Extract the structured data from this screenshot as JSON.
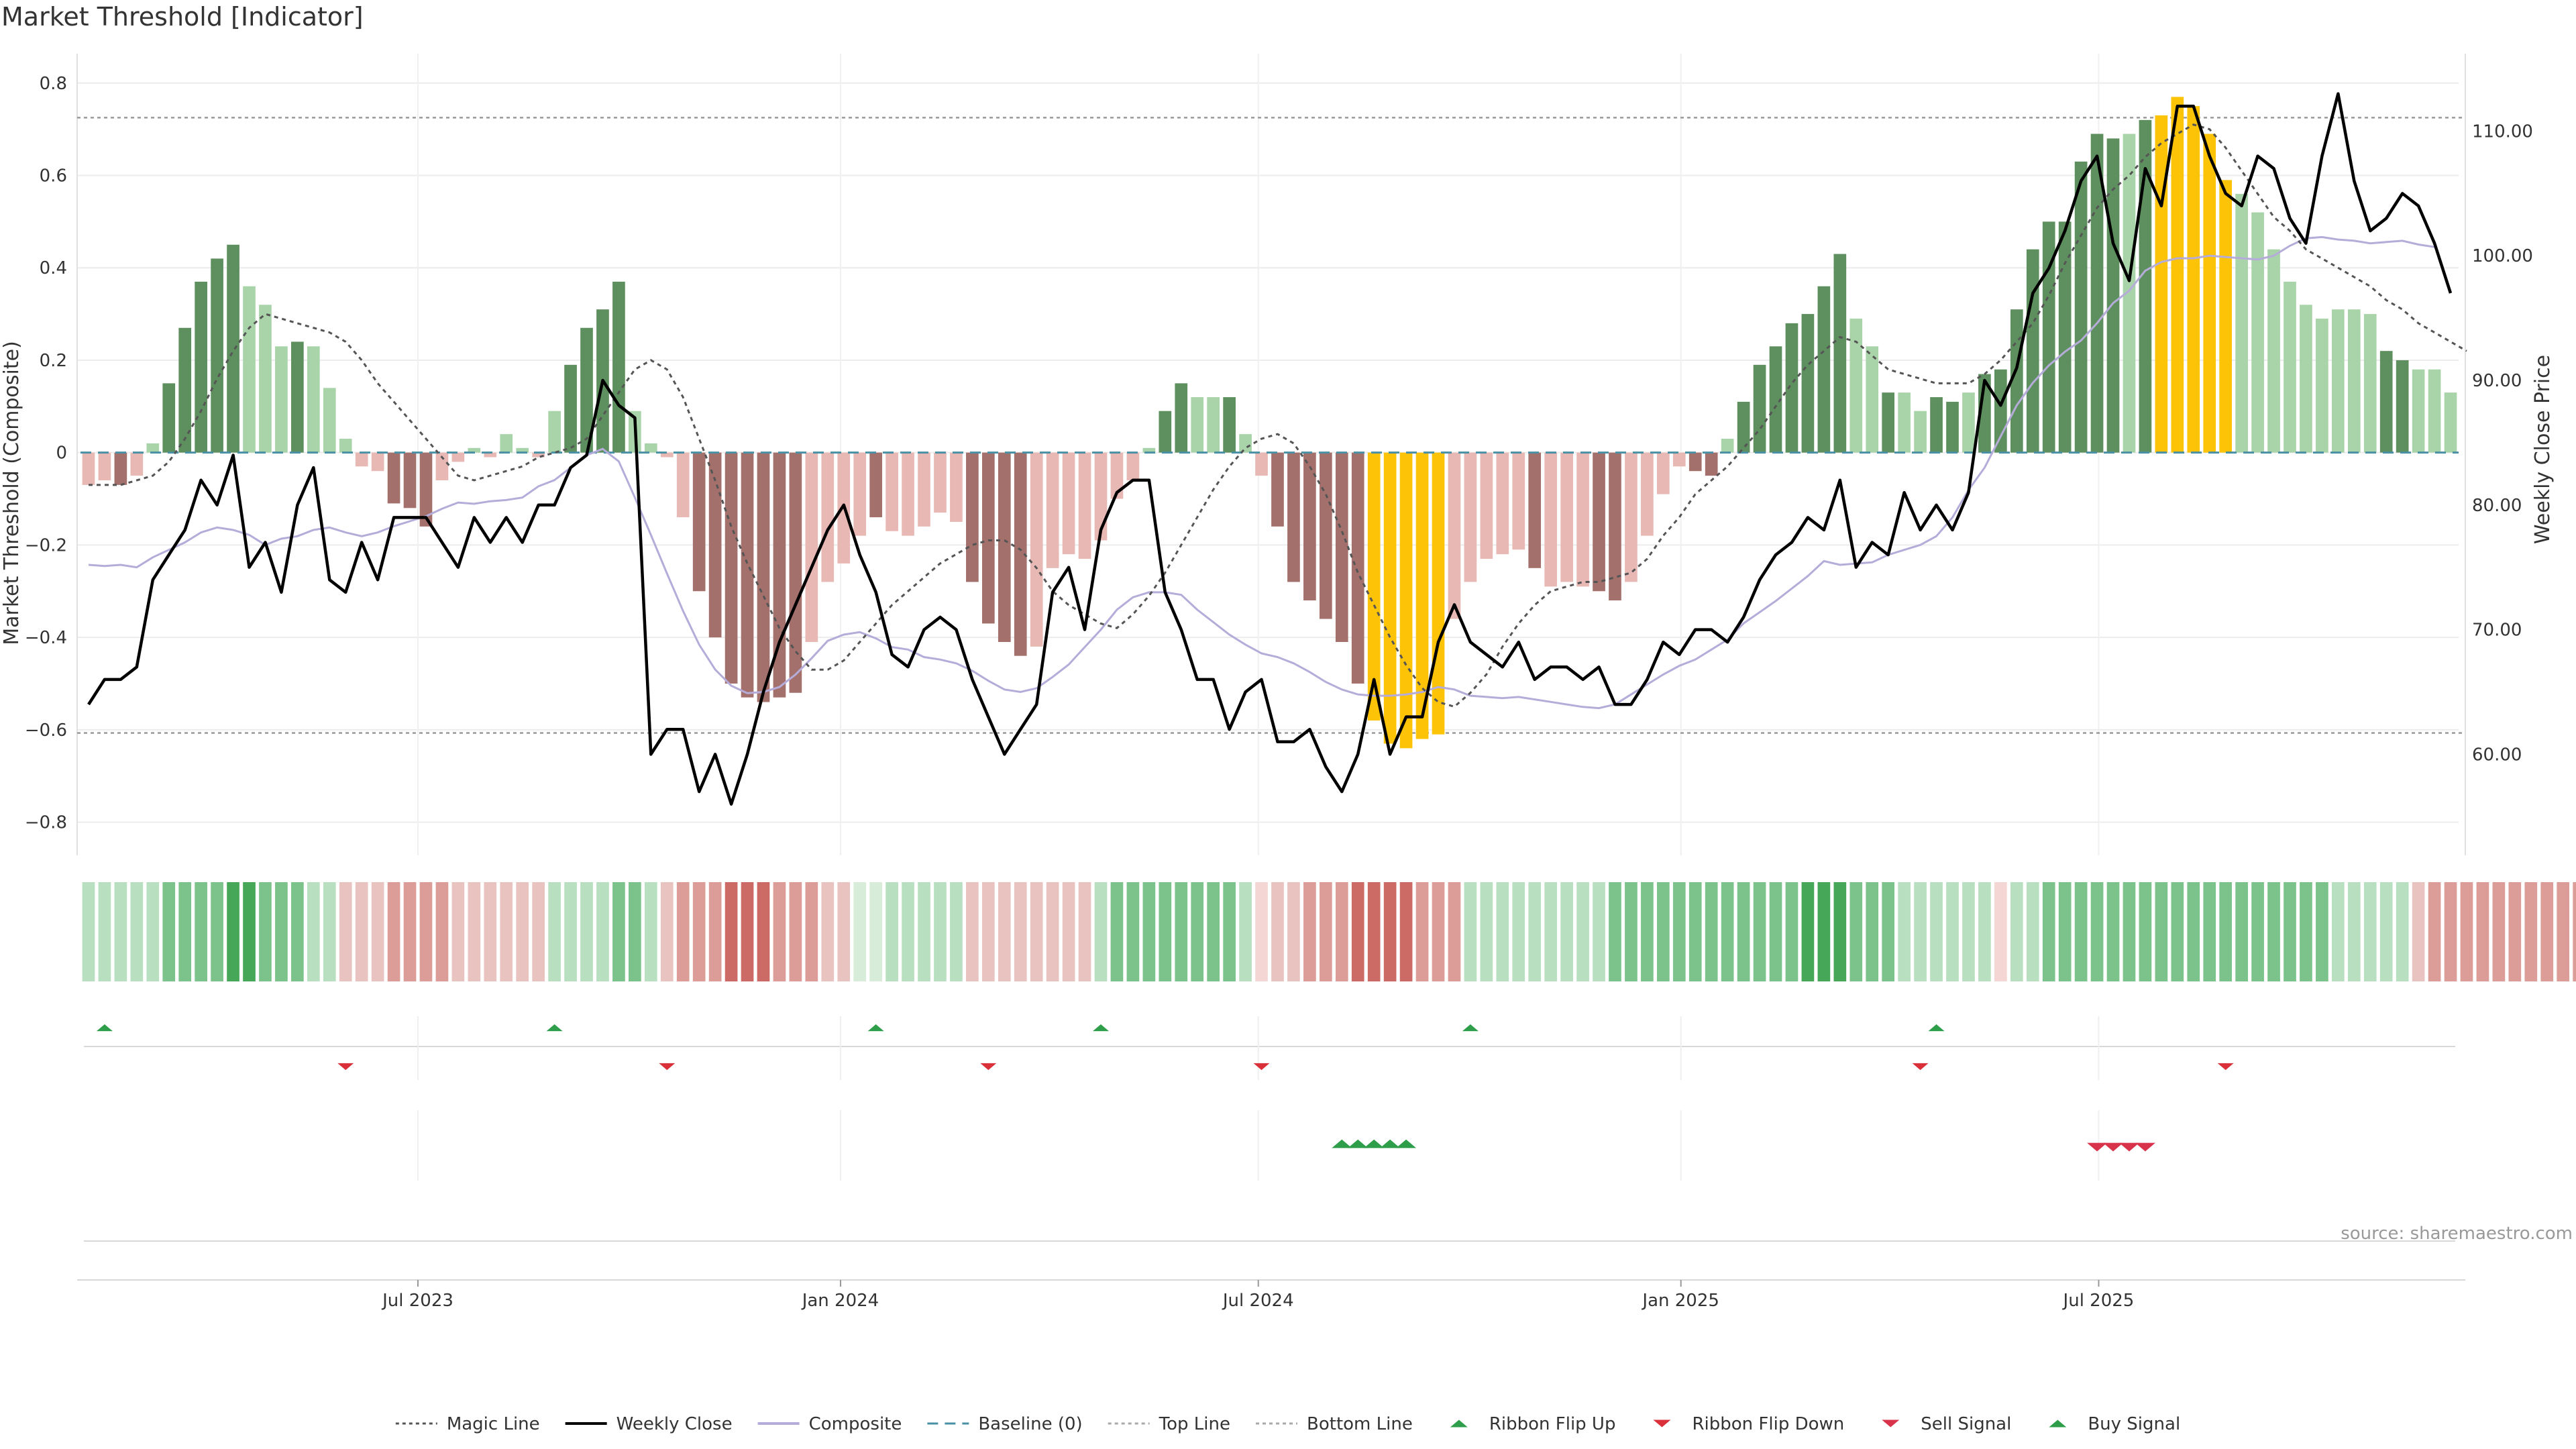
{
  "title": "Market Threshold [Indicator]",
  "source": "source: sharemaestro.com",
  "colors": {
    "green_dark": "#5e8f5e",
    "green_light": "#a9d4a9",
    "red_dark": "#a4706c",
    "red_light": "#e8b8b4",
    "yellow": "#fcc307",
    "composite": "#b5acd9",
    "weekly": "#000000",
    "magic": "#555555",
    "baseline": "#4a90a4",
    "threshold": "#888888",
    "up_marker": "#2e9e4a",
    "down_marker": "#d9303a",
    "sell_marker": "#d8334a",
    "buy_marker": "#2e9e4a"
  },
  "chart_data": {
    "type": "bar",
    "title": "Market Threshold [Indicator]",
    "ylabel_left": "Market Threshold (Composite)",
    "ylabel_right": "Weekly Close Price",
    "ylim_left": [
      -0.85,
      0.82
    ],
    "ylim_right": [
      52.7,
      114.6
    ],
    "yticks_left": [
      {
        "v": 0.8,
        "label": "0.8"
      },
      {
        "v": 0.6,
        "label": "0.6"
      },
      {
        "v": 0.4,
        "label": "0.4"
      },
      {
        "v": 0.2,
        "label": "0.2"
      },
      {
        "v": 0,
        "label": "0"
      },
      {
        "v": -0.2,
        "label": "−0.2"
      },
      {
        "v": -0.4,
        "label": "−0.4"
      },
      {
        "v": -0.6,
        "label": "−0.6"
      },
      {
        "v": -0.8,
        "label": "−0.8"
      }
    ],
    "yticks_right": [
      {
        "v": 110,
        "label": "110.00"
      },
      {
        "v": 100,
        "label": "100.00"
      },
      {
        "v": 90,
        "label": "90.00"
      },
      {
        "v": 80,
        "label": "80.00"
      },
      {
        "v": 70,
        "label": "70.00"
      },
      {
        "v": 60,
        "label": "60.00"
      }
    ],
    "xticks": [
      {
        "i": 21,
        "label": "Jul 2023"
      },
      {
        "i": 47.3,
        "label": "Jan 2024"
      },
      {
        "i": 73.3,
        "label": "Jul 2024"
      },
      {
        "i": 99.6,
        "label": "Jan 2025"
      },
      {
        "i": 125.6,
        "label": "Jul 2025"
      }
    ],
    "top_line": 0.725,
    "bottom_line": -0.607,
    "baseline": 0,
    "composite": [
      -0.07,
      -0.06,
      -0.07,
      -0.05,
      0.02,
      0.15,
      0.27,
      0.37,
      0.42,
      0.45,
      0.36,
      0.32,
      0.23,
      0.24,
      0.23,
      0.14,
      0.03,
      -0.03,
      -0.04,
      -0.11,
      -0.12,
      -0.16,
      -0.06,
      -0.02,
      0.01,
      -0.01,
      0.04,
      0.01,
      -0.01,
      0.09,
      0.19,
      0.27,
      0.31,
      0.37,
      0.09,
      0.02,
      -0.01,
      -0.14,
      -0.3,
      -0.4,
      -0.5,
      -0.53,
      -0.54,
      -0.53,
      -0.52,
      -0.41,
      -0.28,
      -0.24,
      -0.18,
      -0.14,
      -0.17,
      -0.18,
      -0.16,
      -0.13,
      -0.15,
      -0.28,
      -0.37,
      -0.41,
      -0.44,
      -0.42,
      -0.25,
      -0.22,
      -0.23,
      -0.19,
      -0.1,
      -0.06,
      0.01,
      0.09,
      0.15,
      0.12,
      0.12,
      0.12,
      0.04,
      -0.05,
      -0.16,
      -0.28,
      -0.32,
      -0.36,
      -0.41,
      -0.5,
      -0.58,
      -0.63,
      -0.64,
      -0.62,
      -0.61,
      -0.36,
      -0.28,
      -0.23,
      -0.22,
      -0.21,
      -0.25,
      -0.29,
      -0.28,
      -0.29,
      -0.3,
      -0.32,
      -0.28,
      -0.18,
      -0.09,
      -0.03,
      -0.04,
      -0.05,
      0.03,
      0.11,
      0.19,
      0.23,
      0.28,
      0.3,
      0.36,
      0.43,
      0.29,
      0.23,
      0.13,
      0.13,
      0.09,
      0.12,
      0.11,
      0.13,
      0.17,
      0.18,
      0.31,
      0.44,
      0.5,
      0.5,
      0.63,
      0.69,
      0.68,
      0.69,
      0.72,
      0.73,
      0.77,
      0.75,
      0.69,
      0.59,
      0.56,
      0.52,
      0.44,
      0.37,
      0.32,
      0.29,
      0.31,
      0.31,
      0.3,
      0.22,
      0.2,
      0.18,
      0.18,
      0.13
    ],
    "composite_colors": [
      "RL",
      "RL",
      "RD",
      "RL",
      "GL",
      "GD",
      "GD",
      "GD",
      "GD",
      "GD",
      "GL",
      "GL",
      "GL",
      "GD",
      "GL",
      "GL",
      "GL",
      "RL",
      "RL",
      "RD",
      "RD",
      "RD",
      "RL",
      "RL",
      "GL",
      "RL",
      "GL",
      "GL",
      "RL",
      "GL",
      "GD",
      "GD",
      "GD",
      "GD",
      "GL",
      "GL",
      "RL",
      "RL",
      "RD",
      "RD",
      "RD",
      "RD",
      "RD",
      "RD",
      "RD",
      "RL",
      "RL",
      "RL",
      "RL",
      "RD",
      "RL",
      "RL",
      "RL",
      "RL",
      "RL",
      "RD",
      "RD",
      "RD",
      "RD",
      "RL",
      "RL",
      "RL",
      "RL",
      "RL",
      "RL",
      "RL",
      "GL",
      "GD",
      "GD",
      "GL",
      "GL",
      "GD",
      "GL",
      "RL",
      "RD",
      "RD",
      "RD",
      "RD",
      "RD",
      "RD",
      "Y",
      "Y",
      "Y",
      "Y",
      "Y",
      "RL",
      "RL",
      "RL",
      "RL",
      "RL",
      "RD",
      "RL",
      "RL",
      "RL",
      "RD",
      "RD",
      "RL",
      "RL",
      "RL",
      "RL",
      "RD",
      "RD",
      "GL",
      "GD",
      "GD",
      "GD",
      "GD",
      "GD",
      "GD",
      "GD",
      "GL",
      "GL",
      "GD",
      "GL",
      "GL",
      "GD",
      "GD",
      "GL",
      "GD",
      "GD",
      "GD",
      "GD",
      "GD",
      "GD",
      "GD",
      "GD",
      "GD",
      "GL",
      "GD",
      "Y",
      "Y",
      "Y",
      "Y",
      "Y",
      "GL",
      "GL",
      "GL",
      "GL",
      "GL",
      "GL",
      "GL",
      "GL",
      "GL",
      "GD",
      "GD",
      "GL",
      "GL",
      "GL",
      "GL",
      "GL",
      "GL"
    ],
    "magic_line": [
      -0.07,
      -0.07,
      -0.07,
      -0.06,
      -0.05,
      -0.02,
      0.03,
      0.09,
      0.16,
      0.22,
      0.27,
      0.3,
      0.29,
      0.28,
      0.27,
      0.26,
      0.24,
      0.2,
      0.15,
      0.11,
      0.07,
      0.03,
      -0.01,
      -0.05,
      -0.06,
      -0.05,
      -0.04,
      -0.03,
      -0.01,
      0.0,
      0.01,
      0.03,
      0.08,
      0.13,
      0.18,
      0.2,
      0.18,
      0.12,
      0.03,
      -0.06,
      -0.16,
      -0.24,
      -0.31,
      -0.38,
      -0.43,
      -0.47,
      -0.47,
      -0.45,
      -0.41,
      -0.37,
      -0.33,
      -0.3,
      -0.27,
      -0.24,
      -0.22,
      -0.2,
      -0.19,
      -0.19,
      -0.21,
      -0.25,
      -0.3,
      -0.33,
      -0.35,
      -0.37,
      -0.38,
      -0.35,
      -0.31,
      -0.26,
      -0.2,
      -0.14,
      -0.08,
      -0.03,
      0.01,
      0.03,
      0.04,
      0.02,
      -0.03,
      -0.09,
      -0.17,
      -0.26,
      -0.33,
      -0.4,
      -0.46,
      -0.51,
      -0.54,
      -0.55,
      -0.52,
      -0.48,
      -0.42,
      -0.37,
      -0.33,
      -0.3,
      -0.29,
      -0.28,
      -0.28,
      -0.27,
      -0.26,
      -0.23,
      -0.18,
      -0.14,
      -0.09,
      -0.06,
      -0.03,
      0.01,
      0.05,
      0.1,
      0.15,
      0.19,
      0.22,
      0.25,
      0.24,
      0.21,
      0.18,
      0.17,
      0.16,
      0.15,
      0.15,
      0.15,
      0.17,
      0.2,
      0.24,
      0.28,
      0.34,
      0.41,
      0.47,
      0.53,
      0.57,
      0.6,
      0.64,
      0.67,
      0.69,
      0.71,
      0.7,
      0.66,
      0.61,
      0.56,
      0.51,
      0.48,
      0.44,
      0.42,
      0.4,
      0.38,
      0.36,
      0.33,
      0.31,
      0.28,
      0.26,
      0.24,
      0.22
    ],
    "weekly_close": [
      64,
      66,
      66,
      67,
      74,
      76,
      78,
      82,
      80,
      84,
      75,
      77,
      73,
      80,
      83,
      74,
      73,
      77,
      74,
      79,
      79,
      79,
      77,
      75,
      79,
      77,
      79,
      77,
      80,
      80,
      83,
      84,
      90,
      88,
      87,
      60,
      62,
      62,
      57,
      60,
      56,
      60,
      65,
      69,
      72,
      75,
      78,
      80,
      76,
      73,
      68,
      67,
      70,
      71,
      70,
      66,
      63,
      60,
      62,
      64,
      73,
      75,
      70,
      78,
      81,
      82,
      82,
      73,
      70,
      66,
      66,
      62,
      65,
      66,
      61,
      61,
      62,
      59,
      57,
      60,
      66,
      60,
      63,
      63,
      69,
      72,
      69,
      68,
      67,
      69,
      66,
      67,
      67,
      66,
      67,
      64,
      64,
      66,
      69,
      68,
      70,
      70,
      69,
      71,
      74,
      76,
      77,
      79,
      78,
      82,
      75,
      77,
      76,
      81,
      78,
      80,
      78,
      81,
      90,
      88,
      91,
      97,
      99,
      102,
      106,
      108,
      101,
      98,
      107,
      104,
      112,
      112,
      108,
      105,
      104,
      108,
      107,
      103,
      101,
      108,
      113,
      106,
      102,
      103,
      105,
      104,
      101,
      97
    ],
    "composite_smooth": [
      75.2,
      75.1,
      75.2,
      75.0,
      75.8,
      76.4,
      77.0,
      77.8,
      78.2,
      78.0,
      77.6,
      76.8,
      77.3,
      77.5,
      78.0,
      78.2,
      77.8,
      77.5,
      77.8,
      78.3,
      78.7,
      79.1,
      79.7,
      80.2,
      80.1,
      80.3,
      80.4,
      80.6,
      81.5,
      82.0,
      83.0,
      84.0,
      84.5,
      83.5,
      80.6,
      77.6,
      74.5,
      71.5,
      68.8,
      66.8,
      65.5,
      64.9,
      65.0,
      65.4,
      66.4,
      67.7,
      69.1,
      69.6,
      69.8,
      69.3,
      68.6,
      68.4,
      67.8,
      67.6,
      67.3,
      66.7,
      65.9,
      65.2,
      65.0,
      65.3,
      66.2,
      67.2,
      68.6,
      70.0,
      71.6,
      72.6,
      73.0,
      73.0,
      72.8,
      71.6,
      70.6,
      69.6,
      68.8,
      68.1,
      67.8,
      67.3,
      66.6,
      65.8,
      65.2,
      64.8,
      64.7,
      64.7,
      64.8,
      65.0,
      65.4,
      65.2,
      64.7,
      64.6,
      64.5,
      64.6,
      64.4,
      64.2,
      64.0,
      63.8,
      63.7,
      64.0,
      64.8,
      65.6,
      66.4,
      67.1,
      67.6,
      68.4,
      69.2,
      70.5,
      71.4,
      72.3,
      73.3,
      74.3,
      75.5,
      75.2,
      75.3,
      75.4,
      76.0,
      76.4,
      76.8,
      77.5,
      79.0,
      81.2,
      83.0,
      85.5,
      88.0,
      89.8,
      91.2,
      92.3,
      93.2,
      94.6,
      96.2,
      97.2,
      98.8,
      99.5,
      99.8,
      99.8,
      100.0,
      99.9,
      99.8,
      99.7,
      100.0,
      100.8,
      101.4,
      101.5,
      101.3,
      101.2,
      101.0,
      101.1,
      101.2,
      100.9,
      100.7
    ],
    "ribbon": [
      "GL",
      "GL",
      "GL",
      "GL",
      "GL",
      "GM",
      "GM",
      "GM",
      "GM",
      "GD",
      "GD",
      "GM",
      "GM",
      "GM",
      "GL",
      "GL",
      "RL",
      "RL",
      "RL",
      "RM",
      "RM",
      "RM",
      "RM",
      "RL",
      "RL",
      "RL",
      "RL",
      "RL",
      "RL",
      "GL",
      "GL",
      "GL",
      "GL",
      "GM",
      "GM",
      "GL",
      "RL",
      "RM",
      "RM",
      "RM",
      "RD",
      "RD",
      "RD",
      "RM",
      "RM",
      "RM",
      "RL",
      "RL",
      "GP",
      "GP",
      "GL",
      "GL",
      "GL",
      "GL",
      "GL",
      "RL",
      "RL",
      "RL",
      "RL",
      "RL",
      "RL",
      "RL",
      "RL",
      "GL",
      "GM",
      "GM",
      "GM",
      "GM",
      "GM",
      "GM",
      "GM",
      "GM",
      "GL",
      "RP",
      "RL",
      "RL",
      "RM",
      "RM",
      "RM",
      "RD",
      "RD",
      "RD",
      "RD",
      "RM",
      "RM",
      "RM",
      "GL",
      "GL",
      "GL",
      "GL",
      "GL",
      "GL",
      "GL",
      "GL",
      "GL",
      "GM",
      "GM",
      "GM",
      "GM",
      "GM",
      "GM",
      "GM",
      "GM",
      "GM",
      "GM",
      "GM",
      "GM",
      "GD",
      "GD",
      "GD",
      "GM",
      "GM",
      "GM",
      "GL",
      "GL",
      "GL",
      "GL",
      "GL",
      "GL",
      "RP",
      "GL",
      "GL",
      "GM",
      "GM",
      "GM",
      "GM",
      "GM",
      "GM",
      "GM",
      "GM",
      "GM",
      "GM",
      "GM",
      "GM",
      "GM",
      "GM",
      "GM",
      "GM",
      "GM",
      "GM",
      "GL",
      "GL",
      "GL",
      "GL",
      "GL",
      "RL",
      "RM",
      "RM",
      "RM",
      "RM",
      "RM",
      "RM",
      "RM",
      "RM",
      "RM",
      "RM"
    ],
    "ribbon_flip_up": [
      1,
      29,
      49,
      63,
      86,
      115
    ],
    "ribbon_flip_down": [
      16,
      36,
      56,
      73,
      114,
      133
    ],
    "buy_signals": [
      78,
      79,
      80,
      81,
      82
    ],
    "sell_signals": [
      125,
      126,
      127,
      128
    ]
  },
  "legend": [
    {
      "label": "Magic Line",
      "kind": "dotted",
      "color": "#555555"
    },
    {
      "label": "Weekly Close",
      "kind": "line",
      "color": "#000000"
    },
    {
      "label": "Composite",
      "kind": "line",
      "color": "#b5acd9"
    },
    {
      "label": "Baseline (0)",
      "kind": "dashed",
      "color": "#4a90a4"
    },
    {
      "label": "Top Line",
      "kind": "dotted",
      "color": "#aaaaaa"
    },
    {
      "label": "Bottom Line",
      "kind": "dotted",
      "color": "#aaaaaa"
    },
    {
      "label": "Ribbon Flip Up",
      "kind": "up",
      "color": "#2e9e4a"
    },
    {
      "label": "Ribbon Flip Down",
      "kind": "down",
      "color": "#d9303a"
    },
    {
      "label": "Sell Signal",
      "kind": "down",
      "color": "#d8334a"
    },
    {
      "label": "Buy Signal",
      "kind": "up",
      "color": "#2e9e4a"
    }
  ]
}
